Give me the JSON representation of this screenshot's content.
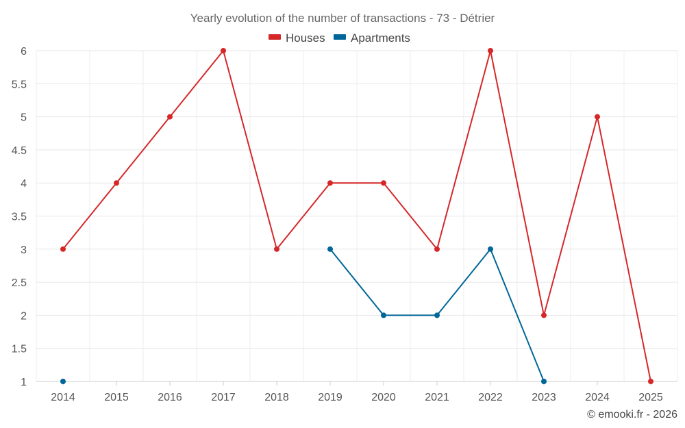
{
  "chart_data": {
    "type": "line",
    "title": "Yearly evolution of the number of transactions - 73 - Détrier",
    "categories": [
      "2014",
      "2015",
      "2016",
      "2017",
      "2018",
      "2019",
      "2020",
      "2021",
      "2022",
      "2023",
      "2024",
      "2025"
    ],
    "series": [
      {
        "name": "Houses",
        "color": "#d62728",
        "values": [
          3,
          4,
          5,
          6,
          3,
          4,
          4,
          3,
          6,
          2,
          5,
          1
        ]
      },
      {
        "name": "Apartments",
        "color": "#006699",
        "values": [
          1,
          null,
          null,
          null,
          null,
          3,
          2,
          2,
          3,
          1,
          null,
          null
        ]
      }
    ],
    "ylim": [
      1,
      6
    ],
    "yticks": [
      "1",
      "1.5",
      "2",
      "2.5",
      "3",
      "3.5",
      "4",
      "4.5",
      "5",
      "5.5",
      "6"
    ],
    "grid": true,
    "legend": "top-center"
  },
  "credit": "© emooki.fr - 2026"
}
